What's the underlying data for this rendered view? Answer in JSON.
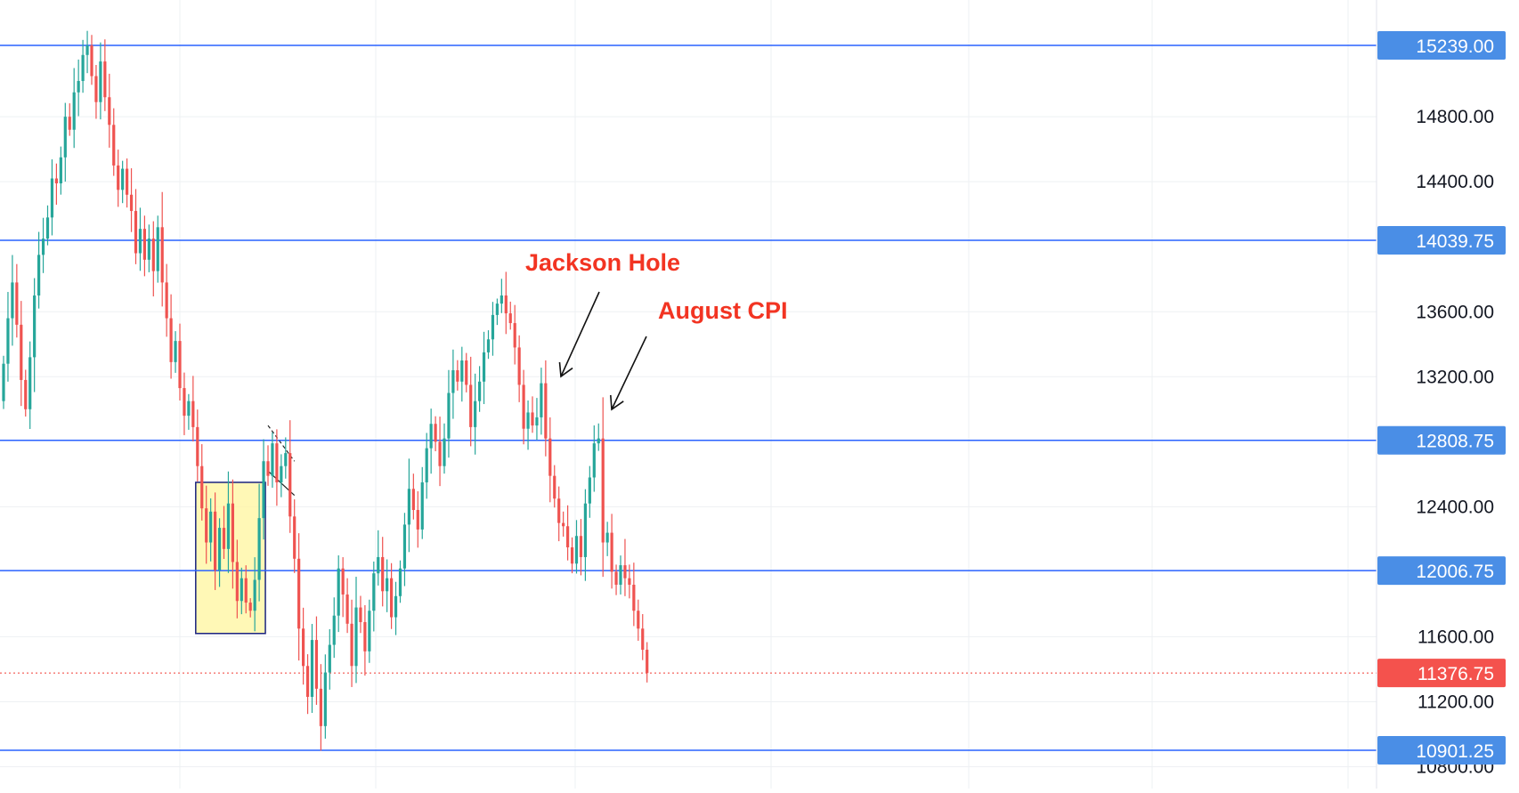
{
  "colors": {
    "up": "#26a69a",
    "down": "#ef5350",
    "hline": "#2962ff",
    "hline_label_bg": "#4a8ee6",
    "last_price_bg": "#f4524d",
    "grid": "#eef0f3",
    "annotation": "#f23422",
    "box_fill": "#fff59d",
    "box_stroke": "#1a237e"
  },
  "chart_data": {
    "type": "candlestick",
    "y_axis_ticks": [
      "10800.00",
      "11200.00",
      "11600.00",
      "12400.00",
      "13200.00",
      "13600.00",
      "14400.00",
      "14800.00"
    ],
    "ylim": [
      10760,
      15520
    ],
    "horizontal_levels": [
      {
        "value": 15239.0,
        "label": "15239.00"
      },
      {
        "value": 14039.75,
        "label": "14039.75"
      },
      {
        "value": 12808.75,
        "label": "12808.75"
      },
      {
        "value": 12006.75,
        "label": "12006.75"
      },
      {
        "value": 10901.25,
        "label": "10901.25"
      }
    ],
    "last_price": {
      "value": 11376.75,
      "label": "11376.75"
    },
    "annotations": [
      {
        "text": "Jackson Hole",
        "target_index": 123,
        "target_price": 13180
      },
      {
        "text": "August CPI",
        "target_index": 134,
        "target_price": 12990
      }
    ],
    "highlight_box": {
      "start_index": 44,
      "end_index": 59,
      "price_top": 12550,
      "price_bottom": 11620
    },
    "closes": [
      13280,
      13560,
      13780,
      13520,
      13180,
      13000,
      13320,
      13700,
      13950,
      14050,
      14180,
      14420,
      14390,
      14550,
      14800,
      14720,
      14950,
      15020,
      15180,
      15239,
      15050,
      14890,
      15140,
      14920,
      14750,
      14500,
      14350,
      14480,
      14320,
      14220,
      13960,
      14110,
      13920,
      14050,
      13850,
      14120,
      13780,
      13560,
      13290,
      13420,
      13130,
      12960,
      13050,
      12890,
      12650,
      12390,
      12180,
      12370,
      12010,
      12270,
      12140,
      12420,
      12060,
      11820,
      11960,
      11810,
      11760,
      11950,
      12330,
      12680,
      12590,
      12790,
      12550,
      12650,
      12730,
      12340,
      12080,
      11650,
      11420,
      11230,
      11580,
      11280,
      11050,
      11380,
      11550,
      11730,
      12020,
      11860,
      11680,
      11420,
      11780,
      11690,
      11510,
      11760,
      11990,
      12090,
      11880,
      11960,
      11720,
      11850,
      12020,
      12290,
      12510,
      12380,
      12260,
      12550,
      12760,
      12910,
      12800,
      12650,
      12820,
      13100,
      13240,
      13170,
      13300,
      13150,
      12890,
      13050,
      13170,
      13350,
      13430,
      13580,
      13650,
      13700,
      13590,
      13530,
      13380,
      13150,
      12880,
      12980,
      12900,
      12950,
      13160,
      12820,
      12590,
      12450,
      12300,
      12280,
      12150,
      12050,
      12220,
      12090,
      12420,
      12580,
      12790,
      12820,
      12180,
      12240,
      12000,
      11920,
      12040,
      11960,
      11920,
      11760,
      11650,
      11520,
      11376.75
    ]
  }
}
